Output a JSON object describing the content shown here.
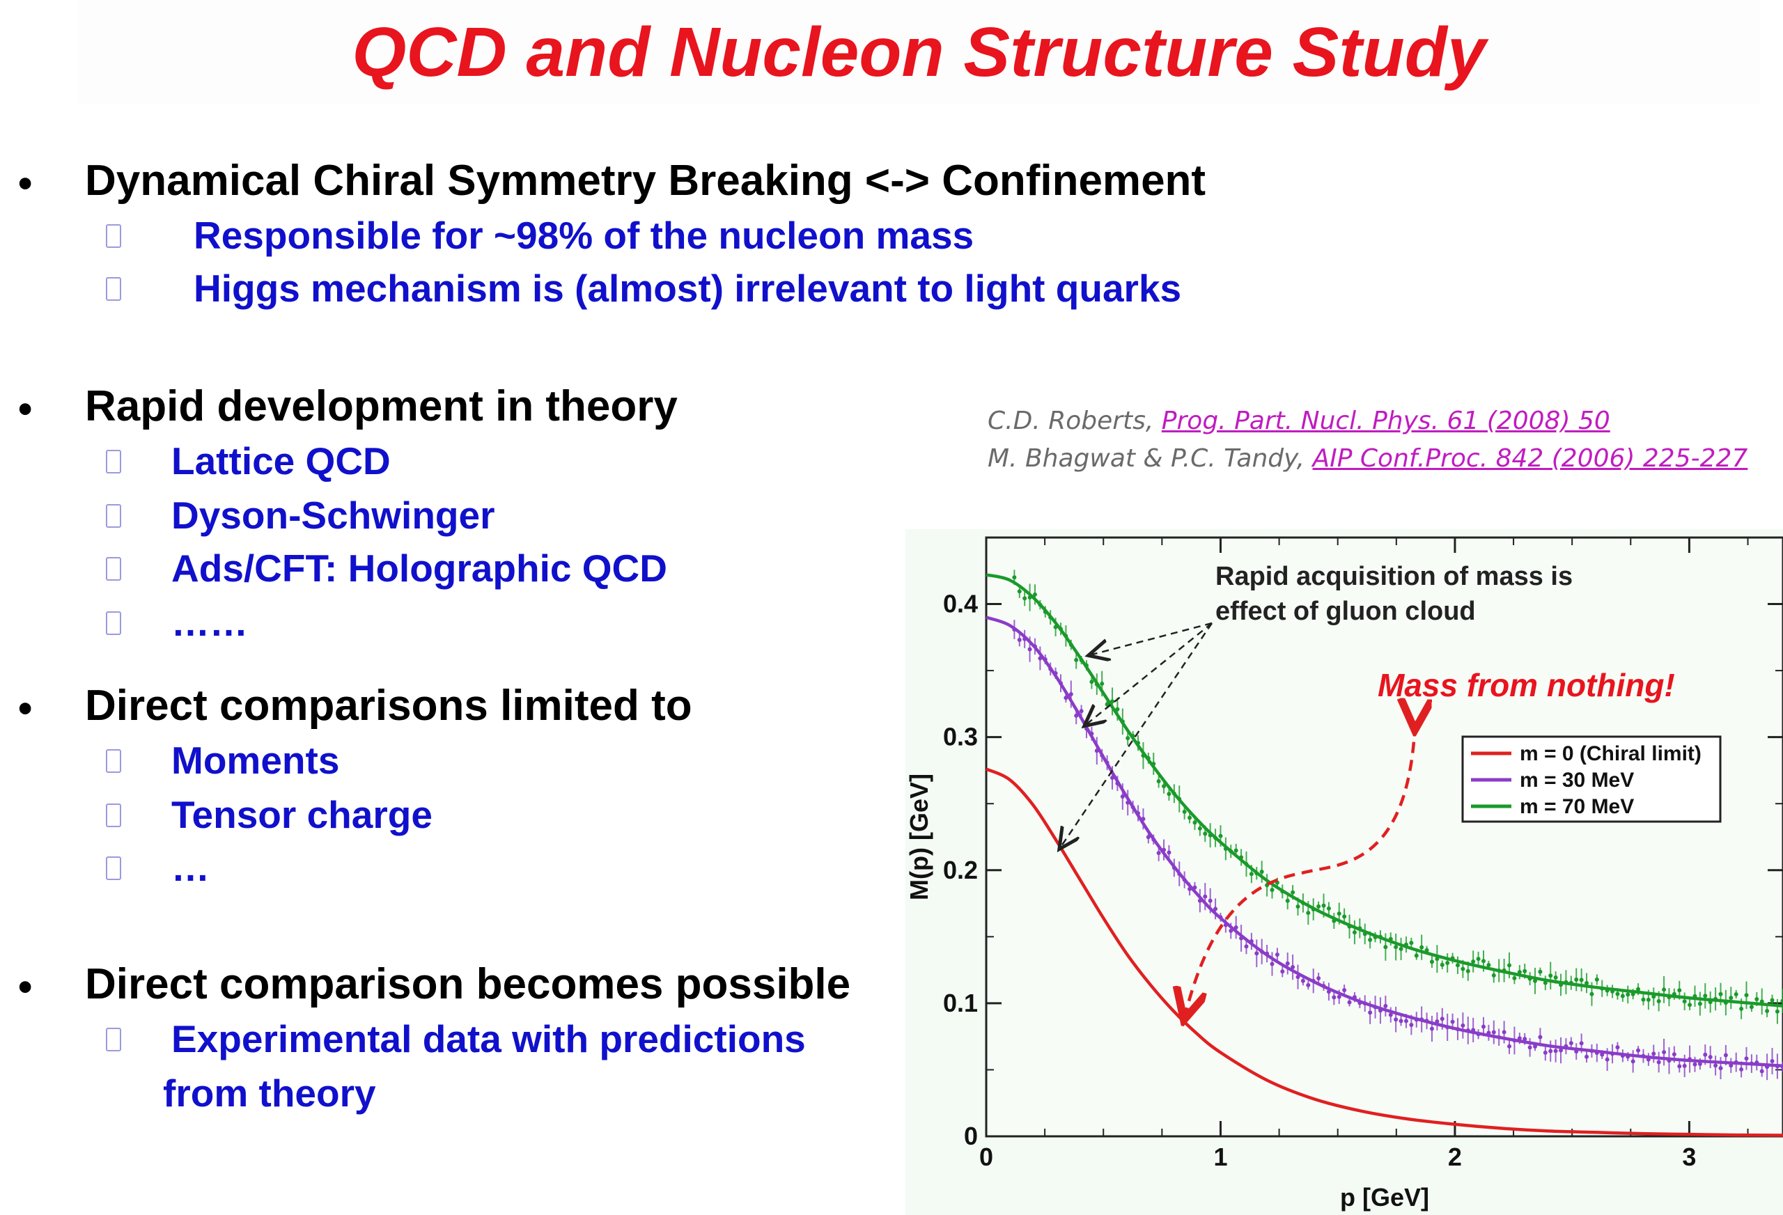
{
  "slide": {
    "title": "QCD and Nucleon Structure Study",
    "bullets": [
      {
        "heading": "Dynamical Chiral Symmetry Breaking  <->  Confinement",
        "items": [
          "Responsible for  ~98% of the nucleon mass",
          "Higgs mechanism is (almost) irrelevant to light quarks"
        ]
      },
      {
        "heading": "Rapid development in theory",
        "items": [
          "Lattice QCD",
          "Dyson-Schwinger",
          "Ads/CFT: Holographic QCD",
          "……"
        ]
      },
      {
        "heading": "Direct comparisons limited to",
        "items": [
          "Moments",
          "Tensor charge",
          " …"
        ]
      },
      {
        "heading": "Direct comparison becomes possible",
        "items": [
          "Experimental data with predictions",
          "from theory"
        ]
      }
    ],
    "references": [
      {
        "authors": "C.D. Roberts, ",
        "link": "Prog. Part. Nucl. Phys. 61 (2008) 50"
      },
      {
        "authors": "M. Bhagwat & P.C. Tandy, ",
        "link": "AIP Conf.Proc. 842 (2006) 225-227"
      }
    ],
    "colors": {
      "title": "#e8141e",
      "heading": "#000000",
      "subitem": "#1010cc",
      "reference": "#6a6a6a",
      "reference_link": "#c01cc0"
    }
  },
  "chart_data": {
    "type": "line",
    "xlabel": "p [GeV]",
    "ylabel": "M(p) [GeV]",
    "xlim": [
      0,
      3.4
    ],
    "ylim": [
      0,
      0.45
    ],
    "x_ticks": [
      0,
      1,
      2,
      3
    ],
    "y_ticks": [
      0,
      0.1,
      0.2,
      0.3,
      0.4
    ],
    "x_tick_labels": [
      "0",
      "1",
      "2",
      "3"
    ],
    "y_tick_labels": [
      "0",
      "0.1",
      "0.2",
      "0.3",
      "0.4"
    ],
    "annotation": "Rapid acquisition of mass is\neffect of gluon cloud",
    "annotation_lines": [
      "Rapid acquisition of mass is",
      "effect of gluon cloud"
    ],
    "highlight": "Mass from nothing!",
    "legend_position": "top-right",
    "series": [
      {
        "name": "m = 0 (Chiral limit)",
        "color": "#e02020",
        "x": [
          0,
          0.1,
          0.2,
          0.3,
          0.4,
          0.5,
          0.6,
          0.7,
          0.8,
          0.9,
          1.0,
          1.2,
          1.4,
          1.6,
          1.8,
          2.0,
          2.2,
          2.4,
          2.6,
          2.8,
          3.0,
          3.2,
          3.4
        ],
        "y": [
          0.276,
          0.268,
          0.249,
          0.222,
          0.193,
          0.164,
          0.137,
          0.114,
          0.094,
          0.077,
          0.063,
          0.042,
          0.028,
          0.019,
          0.013,
          0.009,
          0.006,
          0.004,
          0.003,
          0.002,
          0.0015,
          0.001,
          0.0008
        ]
      },
      {
        "name": "m = 30 MeV",
        "color": "#8a3cc8",
        "x": [
          0,
          0.1,
          0.2,
          0.3,
          0.4,
          0.5,
          0.6,
          0.7,
          0.8,
          0.9,
          1.0,
          1.2,
          1.4,
          1.6,
          1.8,
          2.0,
          2.2,
          2.4,
          2.6,
          2.8,
          3.0,
          3.2,
          3.4
        ],
        "y": [
          0.39,
          0.384,
          0.369,
          0.345,
          0.316,
          0.285,
          0.255,
          0.227,
          0.203,
          0.182,
          0.164,
          0.136,
          0.116,
          0.101,
          0.09,
          0.081,
          0.074,
          0.068,
          0.064,
          0.06,
          0.057,
          0.055,
          0.053
        ]
      },
      {
        "name": "m = 70 MeV",
        "color": "#1a9a2a",
        "x": [
          0,
          0.1,
          0.2,
          0.3,
          0.4,
          0.5,
          0.6,
          0.7,
          0.8,
          0.9,
          1.0,
          1.2,
          1.4,
          1.6,
          1.8,
          2.0,
          2.2,
          2.4,
          2.6,
          2.8,
          3.0,
          3.2,
          3.4
        ],
        "y": [
          0.422,
          0.418,
          0.405,
          0.385,
          0.36,
          0.333,
          0.306,
          0.281,
          0.258,
          0.238,
          0.221,
          0.192,
          0.171,
          0.155,
          0.142,
          0.132,
          0.124,
          0.117,
          0.112,
          0.108,
          0.104,
          0.101,
          0.098
        ]
      }
    ]
  }
}
